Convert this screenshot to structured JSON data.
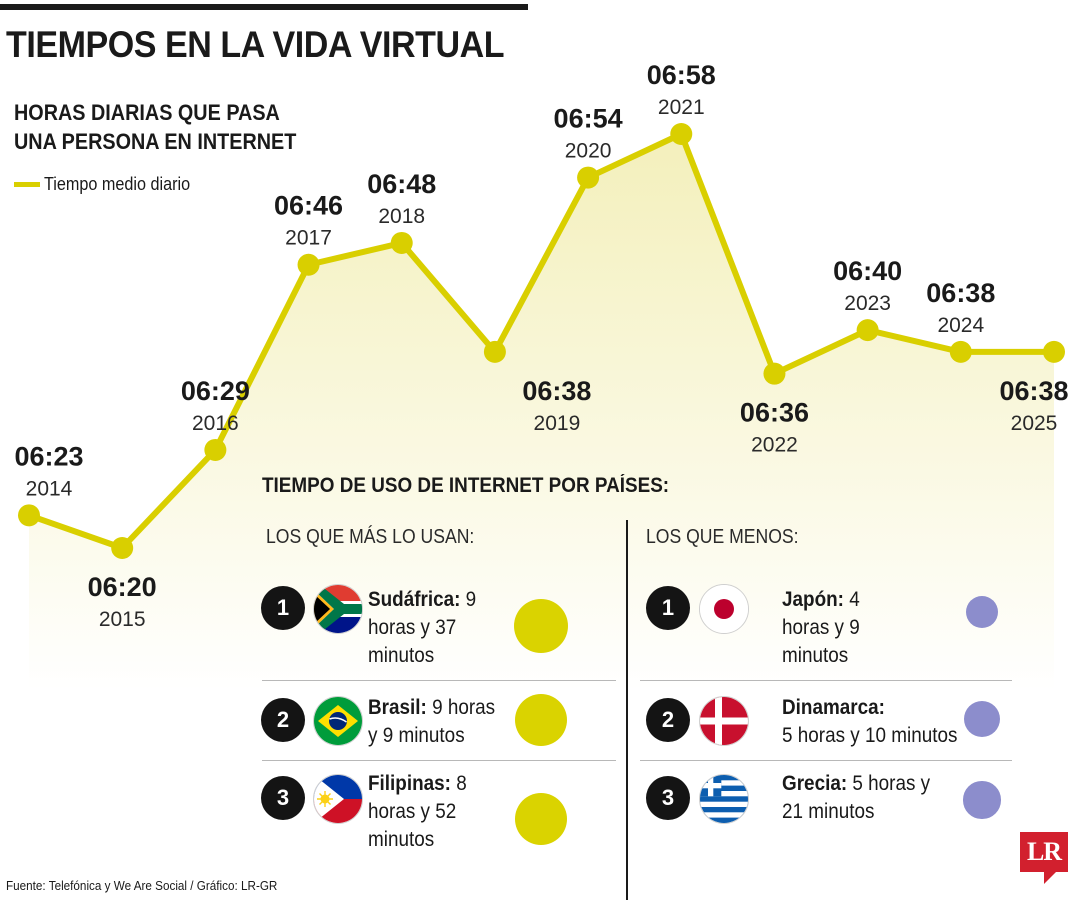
{
  "header": {
    "title": "TIEMPOS EN LA VIDA VIRTUAL",
    "subtitle_line1": "HORAS DIARIAS QUE PASA",
    "subtitle_line2": "UNA PERSONA EN INTERNET",
    "legend_label": "Tiempo medio diario"
  },
  "colors": {
    "series": "#d9cf00",
    "fill_top": "#f3efb8",
    "most_dot": "#dad300",
    "least_dot": "#8c8dcc"
  },
  "chart_data": {
    "type": "line",
    "title": "HORAS DIARIAS QUE PASA UNA PERSONA EN INTERNET",
    "x": [
      "2014",
      "2015",
      "2016",
      "2017",
      "2018",
      "2019",
      "2020",
      "2021",
      "2022",
      "2023",
      "2024",
      "2025"
    ],
    "series": [
      {
        "name": "Tiempo medio diario",
        "values": [
          383,
          380,
          389,
          406,
          408,
          398,
          414,
          418,
          396,
          400,
          398,
          398
        ],
        "labels": [
          "06:23",
          "06:20",
          "06:29",
          "06:46",
          "06:48",
          "06:38",
          "06:54",
          "06:58",
          "06:36",
          "06:40",
          "06:38",
          "06:38"
        ]
      }
    ],
    "unit": "minutes per day",
    "grid": false
  },
  "countries": {
    "section_title": "TIEMPO DE USO DE INTERNET POR PAÍSES:",
    "most_heading": "LOS QUE MÁS LO USAN:",
    "least_heading": "LOS QUE MENOS:",
    "most": [
      {
        "rank": "1",
        "name": "Sudáfrica:",
        "text_line1": " 9",
        "text_line2": "horas y 37",
        "text_line3": "minutos",
        "flag": "south-africa-flag",
        "minutes": 577
      },
      {
        "rank": "2",
        "name": "Brasil:",
        "text_line1": " 9 horas",
        "text_line2": "y 9 minutos",
        "text_line3": "",
        "flag": "brazil-flag",
        "minutes": 549
      },
      {
        "rank": "3",
        "name": "Filipinas:",
        "text_line1": " 8",
        "text_line2": "horas y 52",
        "text_line3": "minutos",
        "flag": "philippines-flag",
        "minutes": 532
      }
    ],
    "least": [
      {
        "rank": "1",
        "name": "Japón:",
        "text_line1": " 4",
        "text_line2": "horas y 9",
        "text_line3": "minutos",
        "flag": "japan-flag",
        "minutes": 249
      },
      {
        "rank": "2",
        "name": "Dinamarca:",
        "text_line1": "",
        "text_line2": "5 horas y 10 minutos",
        "text_line3": "",
        "flag": "denmark-flag",
        "minutes": 310
      },
      {
        "rank": "3",
        "name": "Grecia:",
        "text_line1": " 5 horas y",
        "text_line2": "21 minutos",
        "text_line3": "",
        "flag": "greece-flag",
        "minutes": 321
      }
    ]
  },
  "footer": {
    "source": "Fuente: Telefónica y We Are Social / Gráfico: LR-GR",
    "logo": "LR"
  }
}
